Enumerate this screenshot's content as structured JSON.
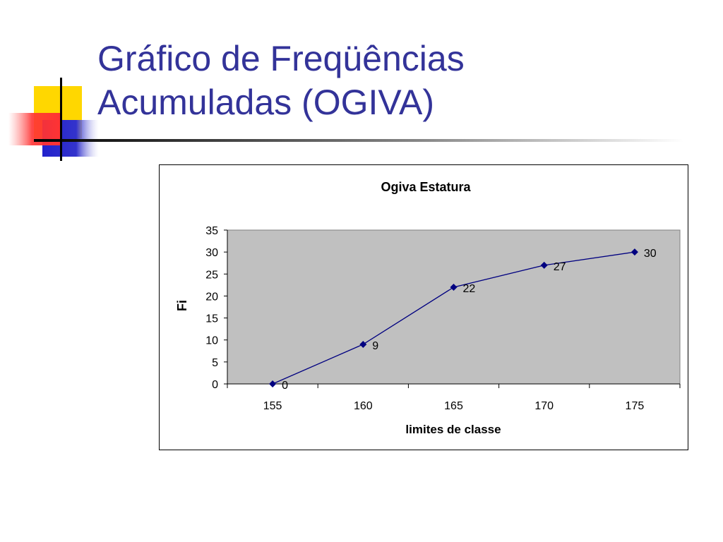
{
  "slide": {
    "title_line1": "Gráfico de Freqüências",
    "title_line2": "Acumuladas (OGIVA)"
  },
  "colors": {
    "title": "#333399",
    "plot_background": "#c0c0c0",
    "series_line": "#000080",
    "deco_yellow": "#ffd700",
    "deco_red": "#ff3333",
    "deco_blue": "#3333cc"
  },
  "chart_data": {
    "type": "line",
    "title": "Ogiva Estatura",
    "xlabel": "limites de classe",
    "ylabel": "Fi",
    "categories": [
      "155",
      "160",
      "165",
      "170",
      "175"
    ],
    "series": [
      {
        "values": [
          0,
          9,
          22,
          27,
          30
        ]
      }
    ],
    "data_labels": [
      "0",
      "9",
      "22",
      "27",
      "30"
    ],
    "ylim": [
      0,
      35
    ],
    "yticks": [
      "0",
      "5",
      "10",
      "15",
      "20",
      "25",
      "30",
      "35"
    ],
    "marker": "diamond",
    "grid": false,
    "legend": "none"
  }
}
